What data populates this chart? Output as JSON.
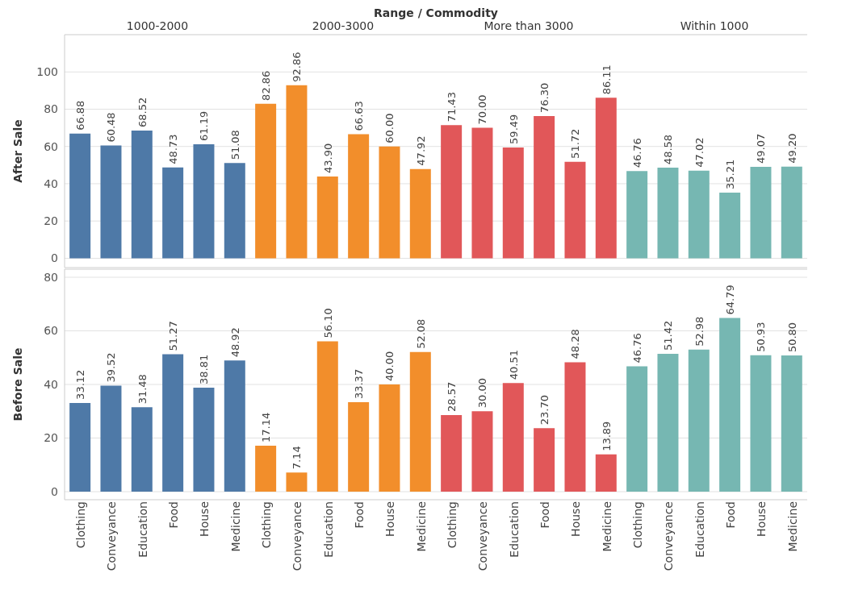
{
  "chart_data": [
    {
      "type": "bar",
      "title": "Range / Commodity",
      "annotations": [
        "1000-2000",
        "2000-3000",
        "More than 3000",
        "Within 1000"
      ],
      "ylabel": "After Sale",
      "categories": [
        null,
        null,
        null,
        null,
        null,
        null,
        null,
        null,
        null,
        null,
        null,
        null,
        null,
        null,
        null,
        null,
        null,
        null,
        null,
        null,
        null,
        null,
        null,
        null
      ],
      "values": [
        66.88,
        60.48,
        68.52,
        48.73,
        61.19,
        51.08,
        82.86,
        92.86,
        43.9,
        66.63,
        60.0,
        47.92,
        71.43,
        70.0,
        59.49,
        76.3,
        51.72,
        86.11,
        46.76,
        48.58,
        47.02,
        35.21,
        49.07,
        49.2
      ],
      "colors": [
        "#4e79a7",
        "#4e79a7",
        "#4e79a7",
        "#4e79a7",
        "#4e79a7",
        "#4e79a7",
        "#f28e2b",
        "#f28e2b",
        "#f28e2b",
        "#f28e2b",
        "#f28e2b",
        "#f28e2b",
        "#e15759",
        "#e15759",
        "#e15759",
        "#e15759",
        "#e15759",
        "#e15759",
        "#76b7b2",
        "#76b7b2",
        "#76b7b2",
        "#76b7b2",
        "#76b7b2",
        "#76b7b2"
      ],
      "value_labels": [
        "66.88",
        "60.48",
        "68.52",
        "48.73",
        "61.19",
        "51.08",
        "82.86",
        "92.86",
        "43.90",
        "66.63",
        "60.00",
        "47.92",
        "71.43",
        "70.00",
        "59.49",
        "76.30",
        "51.72",
        "86.11",
        "46.76",
        "48.58",
        "47.02",
        "35.21",
        "49.07",
        "49.20"
      ],
      "ylim": [
        -5,
        120
      ],
      "yticks": [
        0,
        20,
        40,
        60,
        80,
        100
      ],
      "grid": "y",
      "tick_labels": "y"
    },
    {
      "type": "bar",
      "ylabel": "Before Sale",
      "categories": [
        "Clothing",
        "Conveyance",
        "Education",
        "Food",
        "House",
        "Medicine",
        "Clothing",
        "Conveyance",
        "Education",
        "Food",
        "House",
        "Medicine",
        "Clothing",
        "Conveyance",
        "Education",
        "Food",
        "House",
        "Medicine",
        "Clothing",
        "Conveyance",
        "Education",
        "Food",
        "House",
        "Medicine"
      ],
      "values": [
        33.12,
        39.52,
        31.48,
        51.27,
        38.81,
        48.92,
        17.14,
        7.14,
        56.1,
        33.37,
        40.0,
        52.08,
        28.57,
        30.0,
        40.51,
        23.7,
        48.28,
        13.89,
        46.76,
        51.42,
        52.98,
        64.79,
        50.93,
        50.8
      ],
      "colors": [
        "#4e79a7",
        "#4e79a7",
        "#4e79a7",
        "#4e79a7",
        "#4e79a7",
        "#4e79a7",
        "#f28e2b",
        "#f28e2b",
        "#f28e2b",
        "#f28e2b",
        "#f28e2b",
        "#f28e2b",
        "#e15759",
        "#e15759",
        "#e15759",
        "#e15759",
        "#e15759",
        "#e15759",
        "#76b7b2",
        "#76b7b2",
        "#76b7b2",
        "#76b7b2",
        "#76b7b2",
        "#76b7b2"
      ],
      "value_labels": [
        "33.12",
        "39.52",
        "31.48",
        "51.27",
        "38.81",
        "48.92",
        "17.14",
        "7.14",
        "56.10",
        "33.37",
        "40.00",
        "52.08",
        "28.57",
        "30.00",
        "40.51",
        "23.70",
        "48.28",
        "13.89",
        "46.76",
        "51.42",
        "52.98",
        "64.79",
        "50.93",
        "50.80"
      ],
      "ylim": [
        -3,
        83
      ],
      "yticks": [
        0,
        20,
        40,
        60,
        80
      ],
      "grid": "y"
    }
  ]
}
